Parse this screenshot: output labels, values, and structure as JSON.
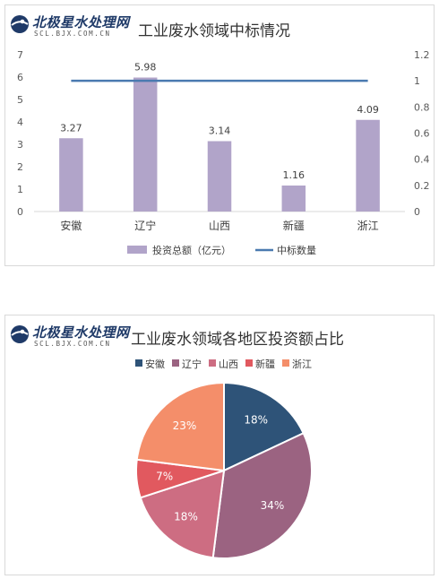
{
  "logo": {
    "name": "北极星水处理网",
    "url": "SCL.BJX.COM.CN"
  },
  "chart_data": [
    {
      "type": "bar",
      "title": "工业废水领域中标情况",
      "categories": [
        "安徽",
        "辽宁",
        "山西",
        "新疆",
        "浙江"
      ],
      "series": [
        {
          "name": "投资总额（亿元）",
          "kind": "bar",
          "axis": "left",
          "values": [
            3.27,
            5.98,
            3.14,
            1.16,
            4.09
          ],
          "labels": [
            "3.27",
            "5.98",
            "3.14",
            "1.16",
            "4.09"
          ],
          "color": "#b1a4c9"
        },
        {
          "name": "中标数量",
          "kind": "line",
          "axis": "right",
          "values": [
            1,
            1,
            1,
            1,
            1
          ],
          "color": "#4a7ab0"
        }
      ],
      "ylim": [
        0,
        7
      ],
      "yticks": [
        "0",
        "1",
        "2",
        "3",
        "4",
        "5",
        "6",
        "7"
      ],
      "y2lim": [
        0,
        1.2
      ],
      "y2ticks": [
        "0",
        "0.2",
        "0.4",
        "0.6",
        "0.8",
        "1",
        "1.2"
      ],
      "xlabel": "",
      "ylabel": "",
      "grid": false,
      "legend": "bottom"
    },
    {
      "type": "pie",
      "title": "工业废水领域各地区投资额占比",
      "categories": [
        "安徽",
        "辽宁",
        "山西",
        "新疆",
        "浙江"
      ],
      "values": [
        18,
        34,
        18,
        7,
        23
      ],
      "labels": [
        "18%",
        "34%",
        "18%",
        "7%",
        "23%"
      ],
      "colors": [
        "#2e5378",
        "#9b6381",
        "#cd6d82",
        "#e1595f",
        "#f48e6a"
      ],
      "legend": "top"
    }
  ]
}
